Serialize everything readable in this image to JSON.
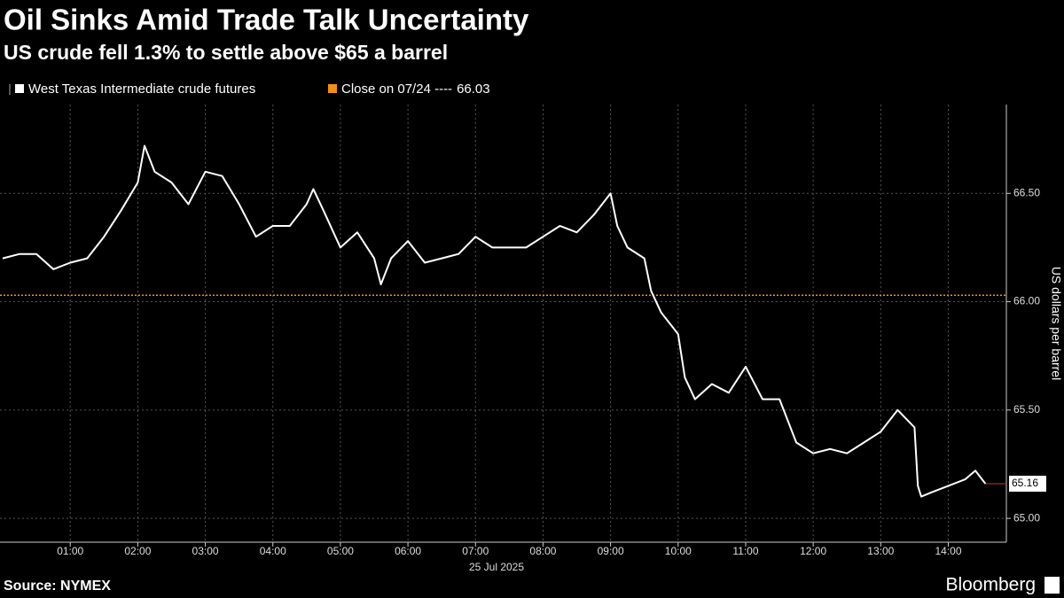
{
  "chart_data": {
    "type": "line",
    "title": "Oil Sinks Amid Trade Talk Uncertainty",
    "subtitle": "US crude fell 1.3% to settle above $65 a barrel",
    "y_axis_label": "US dollars per barrel",
    "date_label": "25 Jul 2025",
    "source": "Source: NYMEX",
    "brand": "Bloomberg",
    "reference_line": {
      "label": "Close on 07/24 ----",
      "value": 66.03,
      "color": "#f0901c"
    },
    "x": [
      0,
      0.25,
      0.5,
      0.75,
      1,
      1.25,
      1.5,
      1.75,
      2,
      2.1,
      2.25,
      2.5,
      2.75,
      3,
      3.25,
      3.5,
      3.75,
      4,
      4.25,
      4.5,
      4.6,
      4.75,
      5,
      5.25,
      5.5,
      5.6,
      5.75,
      6,
      6.25,
      6.5,
      6.75,
      7,
      7.25,
      7.5,
      7.75,
      8,
      8.25,
      8.5,
      8.75,
      9,
      9.1,
      9.25,
      9.5,
      9.6,
      9.75,
      10,
      10.1,
      10.25,
      10.5,
      10.75,
      11,
      11.25,
      11.5,
      11.75,
      12,
      12.25,
      12.5,
      12.75,
      13,
      13.25,
      13.5,
      13.55,
      13.6,
      13.75,
      14,
      14.25,
      14.4,
      14.55
    ],
    "series": [
      {
        "name": "West Texas Intermediate crude futures",
        "color": "#ffffff",
        "values": [
          66.2,
          66.22,
          66.22,
          66.15,
          66.18,
          66.2,
          66.3,
          66.42,
          66.55,
          66.72,
          66.6,
          66.55,
          66.45,
          66.6,
          66.58,
          66.45,
          66.3,
          66.35,
          66.35,
          66.45,
          66.52,
          66.42,
          66.25,
          66.32,
          66.2,
          66.08,
          66.2,
          66.28,
          66.18,
          66.2,
          66.22,
          66.3,
          66.25,
          66.25,
          66.25,
          66.3,
          66.35,
          66.32,
          66.4,
          66.5,
          66.35,
          66.25,
          66.2,
          66.05,
          65.95,
          65.85,
          65.65,
          65.55,
          65.62,
          65.58,
          65.7,
          65.55,
          65.55,
          65.35,
          65.3,
          65.32,
          65.3,
          65.35,
          65.4,
          65.5,
          65.42,
          65.15,
          65.1,
          65.12,
          65.15,
          65.18,
          65.22,
          65.16
        ]
      }
    ],
    "xlim": [
      -0.04,
      14.86
    ],
    "xticks": [
      {
        "value": 1,
        "label": "01:00"
      },
      {
        "value": 2,
        "label": "02:00"
      },
      {
        "value": 3,
        "label": "03:00"
      },
      {
        "value": 4,
        "label": "04:00"
      },
      {
        "value": 5,
        "label": "05:00"
      },
      {
        "value": 6,
        "label": "06:00"
      },
      {
        "value": 7,
        "label": "07:00"
      },
      {
        "value": 8,
        "label": "08:00"
      },
      {
        "value": 9,
        "label": "09:00"
      },
      {
        "value": 10,
        "label": "10:00"
      },
      {
        "value": 11,
        "label": "11:00"
      },
      {
        "value": 12,
        "label": "12:00"
      },
      {
        "value": 13,
        "label": "13:00"
      },
      {
        "value": 14,
        "label": "14:00"
      }
    ],
    "ylim": [
      64.89,
      66.91
    ],
    "yticks": [
      {
        "value": 65,
        "label": "65.00"
      },
      {
        "value": 65.5,
        "label": "65.50"
      },
      {
        "value": 66,
        "label": "66.00"
      },
      {
        "value": 66.5,
        "label": "66.50"
      }
    ],
    "grid": true
  }
}
